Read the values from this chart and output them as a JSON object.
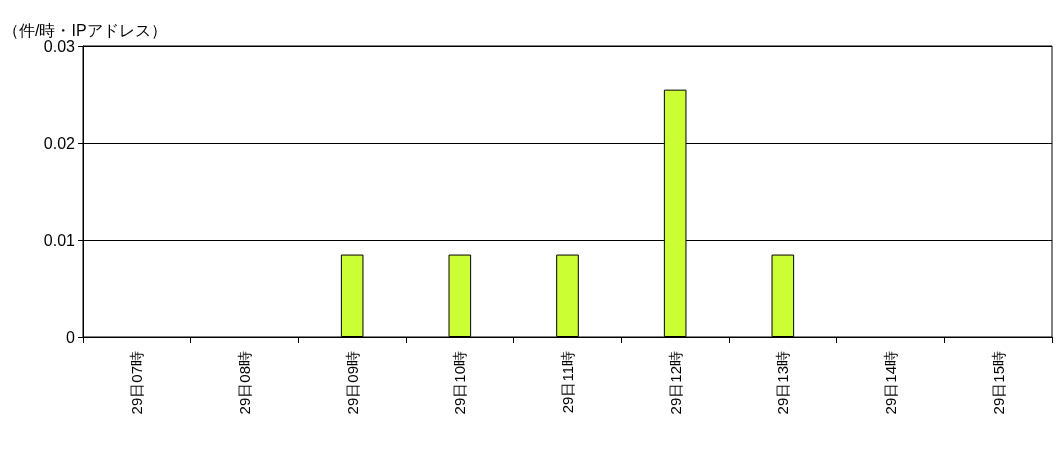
{
  "chart_data": {
    "type": "bar",
    "ylabel": "（件/時・IPアドレス）",
    "categories": [
      "29日07時",
      "29日08時",
      "29日09時",
      "29日10時",
      "29日11時",
      "29日12時",
      "29日13時",
      "29日14時",
      "29日15時"
    ],
    "series": [
      {
        "color": "#ccff33",
        "values": [
          0,
          0,
          0.0085,
          0.0085,
          0.0085,
          0.0255,
          0.0085,
          0,
          0
        ]
      }
    ],
    "ylim": [
      0,
      0.03
    ],
    "yticks": [
      0,
      0.01,
      0.02,
      0.03
    ],
    "grid": "y"
  }
}
